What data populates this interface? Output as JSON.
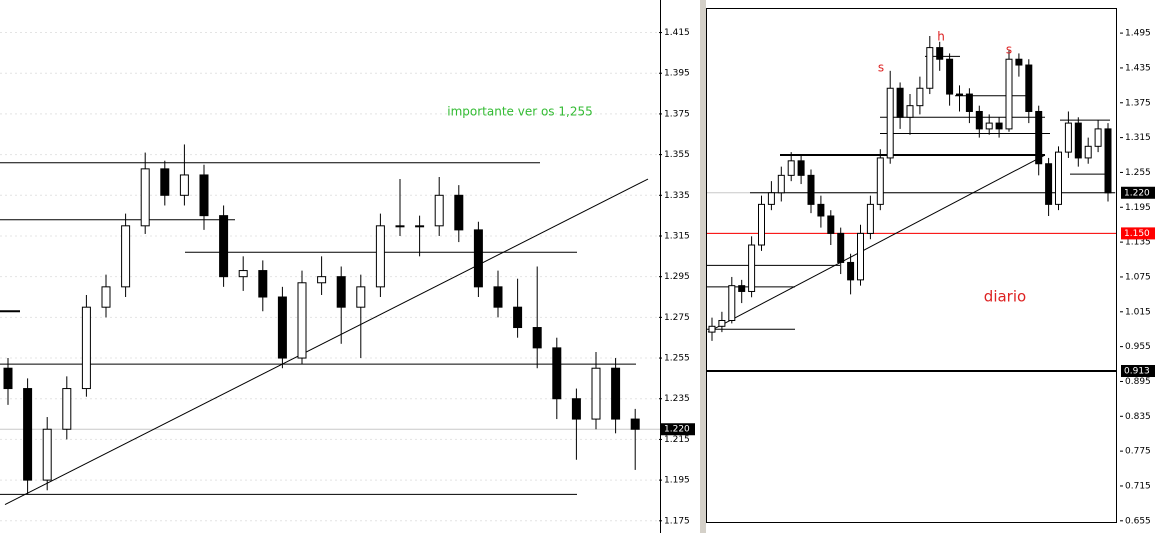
{
  "chart_data": [
    {
      "type": "candlestick",
      "ylim": [
        1.169,
        1.431
      ],
      "yticks": [
        1.415,
        1.395,
        1.375,
        1.355,
        1.335,
        1.315,
        1.295,
        1.275,
        1.255,
        1.235,
        1.215,
        1.195,
        1.175
      ],
      "grid": true,
      "candles": [
        [
          1.25,
          1.255,
          1.232,
          1.24
        ],
        [
          1.24,
          1.245,
          1.188,
          1.195
        ],
        [
          1.195,
          1.226,
          1.19,
          1.22
        ],
        [
          1.22,
          1.246,
          1.215,
          1.24
        ],
        [
          1.24,
          1.286,
          1.236,
          1.28
        ],
        [
          1.28,
          1.296,
          1.275,
          1.29
        ],
        [
          1.29,
          1.326,
          1.285,
          1.32
        ],
        [
          1.32,
          1.356,
          1.316,
          1.348
        ],
        [
          1.348,
          1.352,
          1.33,
          1.335
        ],
        [
          1.335,
          1.36,
          1.33,
          1.345
        ],
        [
          1.345,
          1.35,
          1.318,
          1.325
        ],
        [
          1.325,
          1.33,
          1.29,
          1.295
        ],
        [
          1.295,
          1.305,
          1.288,
          1.298
        ],
        [
          1.298,
          1.303,
          1.278,
          1.285
        ],
        [
          1.285,
          1.29,
          1.25,
          1.255
        ],
        [
          1.255,
          1.298,
          1.252,
          1.292
        ],
        [
          1.292,
          1.305,
          1.286,
          1.295
        ],
        [
          1.295,
          1.3,
          1.262,
          1.28
        ],
        [
          1.28,
          1.296,
          1.255,
          1.29
        ],
        [
          1.29,
          1.326,
          1.285,
          1.32
        ],
        [
          1.32,
          1.343,
          1.315,
          1.32
        ],
        [
          1.32,
          1.325,
          1.305,
          1.32
        ],
        [
          1.32,
          1.344,
          1.315,
          1.335
        ],
        [
          1.335,
          1.34,
          1.312,
          1.318
        ],
        [
          1.318,
          1.322,
          1.285,
          1.29
        ],
        [
          1.29,
          1.298,
          1.275,
          1.28
        ],
        [
          1.28,
          1.294,
          1.265,
          1.27
        ],
        [
          1.27,
          1.3,
          1.25,
          1.26
        ],
        [
          1.26,
          1.265,
          1.225,
          1.235
        ],
        [
          1.235,
          1.24,
          1.205,
          1.225
        ],
        [
          1.225,
          1.258,
          1.22,
          1.25
        ],
        [
          1.25,
          1.255,
          1.218,
          1.225
        ],
        [
          1.225,
          1.23,
          1.2,
          1.22
        ]
      ],
      "levels": [
        {
          "value": 1.351,
          "color": "#000000"
        },
        {
          "value": 1.323,
          "color": "#000000"
        },
        {
          "value": 1.307,
          "color": "#000000"
        },
        {
          "value": 1.252,
          "color": "#000000"
        },
        {
          "value": 1.188,
          "color": "#000000"
        },
        {
          "value": 1.278,
          "color": "#000000"
        }
      ],
      "trendline": [
        1.183,
        1.343
      ],
      "annotations": [
        {
          "text": "importante ver os 1,255",
          "color": "#33bb33"
        }
      ],
      "price_markers": [
        {
          "value": 1.22,
          "label": "1.220",
          "color": "#000000"
        }
      ]
    },
    {
      "type": "candlestick",
      "ylim": [
        0.634,
        1.552
      ],
      "yticks": [
        1.495,
        1.435,
        1.375,
        1.315,
        1.255,
        1.195,
        1.135,
        1.075,
        1.015,
        0.955,
        0.895,
        0.835,
        0.775,
        0.715,
        0.655
      ],
      "grid": false,
      "candles": [
        [
          0.98,
          1.005,
          0.965,
          0.99
        ],
        [
          0.99,
          1.015,
          0.98,
          1.0
        ],
        [
          1.0,
          1.075,
          0.995,
          1.06
        ],
        [
          1.06,
          1.07,
          1.03,
          1.05
        ],
        [
          1.05,
          1.145,
          1.04,
          1.13
        ],
        [
          1.13,
          1.215,
          1.12,
          1.2
        ],
        [
          1.2,
          1.24,
          1.19,
          1.22
        ],
        [
          1.22,
          1.265,
          1.205,
          1.25
        ],
        [
          1.25,
          1.29,
          1.24,
          1.275
        ],
        [
          1.275,
          1.285,
          1.235,
          1.25
        ],
        [
          1.25,
          1.26,
          1.185,
          1.2
        ],
        [
          1.2,
          1.215,
          1.16,
          1.18
        ],
        [
          1.18,
          1.19,
          1.13,
          1.15
        ],
        [
          1.15,
          1.16,
          1.08,
          1.1
        ],
        [
          1.1,
          1.115,
          1.045,
          1.07
        ],
        [
          1.07,
          1.165,
          1.06,
          1.15
        ],
        [
          1.15,
          1.215,
          1.14,
          1.2
        ],
        [
          1.2,
          1.295,
          1.19,
          1.28
        ],
        [
          1.28,
          1.43,
          1.27,
          1.4
        ],
        [
          1.4,
          1.41,
          1.33,
          1.35
        ],
        [
          1.35,
          1.39,
          1.32,
          1.37
        ],
        [
          1.37,
          1.42,
          1.355,
          1.4
        ],
        [
          1.4,
          1.49,
          1.39,
          1.47
        ],
        [
          1.47,
          1.48,
          1.43,
          1.45
        ],
        [
          1.45,
          1.46,
          1.37,
          1.39
        ],
        [
          1.39,
          1.405,
          1.36,
          1.39
        ],
        [
          1.39,
          1.4,
          1.34,
          1.36
        ],
        [
          1.36,
          1.37,
          1.315,
          1.33
        ],
        [
          1.33,
          1.355,
          1.32,
          1.34
        ],
        [
          1.34,
          1.35,
          1.315,
          1.33
        ],
        [
          1.33,
          1.465,
          1.325,
          1.45
        ],
        [
          1.45,
          1.46,
          1.42,
          1.44
        ],
        [
          1.44,
          1.45,
          1.34,
          1.36
        ],
        [
          1.36,
          1.37,
          1.25,
          1.27
        ],
        [
          1.27,
          1.28,
          1.18,
          1.2
        ],
        [
          1.2,
          1.3,
          1.19,
          1.29
        ],
        [
          1.29,
          1.36,
          1.28,
          1.34
        ],
        [
          1.34,
          1.35,
          1.265,
          1.28
        ],
        [
          1.28,
          1.315,
          1.27,
          1.3
        ],
        [
          1.3,
          1.345,
          1.29,
          1.33
        ],
        [
          1.33,
          1.34,
          1.205,
          1.22
        ]
      ],
      "levels": [
        {
          "value": 1.15,
          "color": "#ff0000"
        },
        {
          "value": 0.913,
          "color": "#000000"
        },
        {
          "value": 1.285,
          "color": "#000000"
        },
        {
          "value": 1.22,
          "color": "#000000"
        },
        {
          "value": 1.35,
          "color": "#000000"
        },
        {
          "value": 1.322,
          "color": "#000000"
        },
        {
          "value": 1.095,
          "color": "#000000"
        },
        {
          "value": 0.985,
          "color": "#000000"
        },
        {
          "value": 1.058,
          "color": "#000000"
        },
        {
          "value": 1.455,
          "color": "#000000"
        },
        {
          "value": 1.387,
          "color": "#000000"
        },
        {
          "value": 1.345,
          "color": "#000000"
        },
        {
          "value": 1.252,
          "color": "#000000"
        }
      ],
      "trendline": [
        0.98,
        1.285
      ],
      "annotations": [
        {
          "text": "s",
          "color": "#dd2222"
        },
        {
          "text": "h",
          "color": "#dd2222"
        },
        {
          "text": "s",
          "color": "#dd2222"
        },
        {
          "text": "diario",
          "color": "#dd2222"
        }
      ],
      "price_markers": [
        {
          "value": 1.22,
          "label": "1.220",
          "color": "#000000"
        },
        {
          "value": 1.15,
          "label": "1.150",
          "color": "#ff0000"
        },
        {
          "value": 0.913,
          "label": "0.913",
          "color": "#000000"
        }
      ]
    }
  ]
}
